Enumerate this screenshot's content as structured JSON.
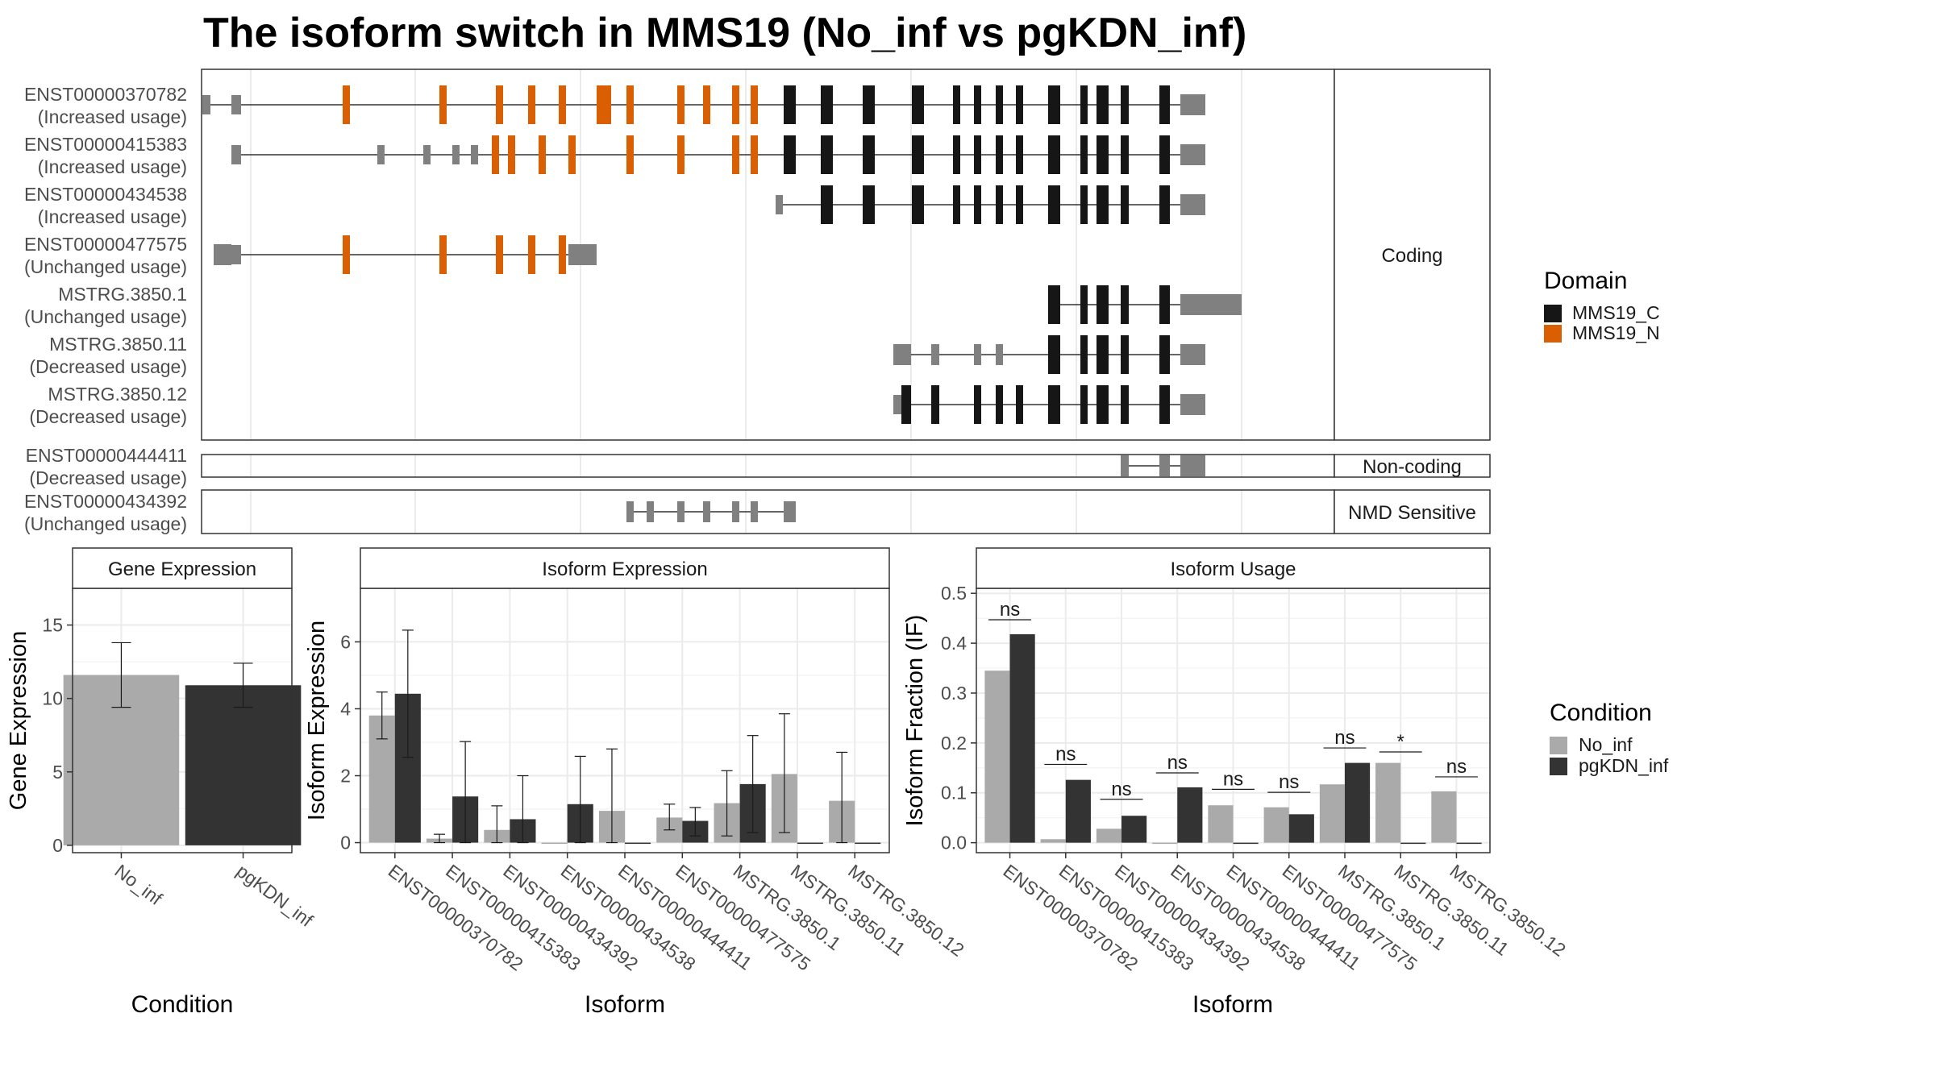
{
  "title": "The isoform switch in MMS19 (No_inf vs pgKDN_inf)",
  "colors": {
    "no_inf": "#AAAAAA",
    "pgkdn_inf": "#333333",
    "mms19_c": "#161616",
    "mms19_n": "#D95F02",
    "exon_plain": "#808080",
    "grid": "#EBEBEB"
  },
  "structure": {
    "facets": [
      "Coding",
      "Non-coding",
      "NMD Sensitive"
    ],
    "domain_legend": {
      "title": "Domain",
      "items": [
        {
          "label": "MMS19_C",
          "color": "#161616"
        },
        {
          "label": "MMS19_N",
          "color": "#D95F02"
        }
      ]
    },
    "isoforms": [
      {
        "id": "ENST00000370782",
        "status": "(Increased usage)",
        "facet": "Coding",
        "exons": [
          [
            1,
            11,
            "t"
          ],
          [
            37,
            49,
            "t"
          ],
          [
            175,
            184,
            "n"
          ],
          [
            295,
            304,
            "n"
          ],
          [
            365,
            374,
            "n"
          ],
          [
            405,
            414,
            "n"
          ],
          [
            443,
            452,
            "n"
          ],
          [
            490,
            508,
            "n"
          ],
          [
            527,
            536,
            "n"
          ],
          [
            590,
            599,
            "n"
          ],
          [
            622,
            631,
            "n"
          ],
          [
            658,
            667,
            "n"
          ],
          [
            681,
            690,
            "n"
          ],
          [
            722,
            737,
            "c"
          ],
          [
            768,
            783,
            "c"
          ],
          [
            820,
            835,
            "c"
          ],
          [
            881,
            896,
            "c"
          ],
          [
            932,
            941,
            "c"
          ],
          [
            958,
            967,
            "c"
          ],
          [
            985,
            994,
            "c"
          ],
          [
            1010,
            1019,
            "c"
          ],
          [
            1050,
            1065,
            "c"
          ],
          [
            1090,
            1099,
            "c"
          ],
          [
            1110,
            1125,
            "c"
          ],
          [
            1140,
            1150,
            "c"
          ],
          [
            1188,
            1201,
            "c"
          ],
          [
            1214,
            1245,
            "u"
          ]
        ]
      },
      {
        "id": "ENST00000415383",
        "status": "(Increased usage)",
        "facet": "Coding",
        "exons": [
          [
            37,
            49,
            "t"
          ],
          [
            218,
            227,
            "t"
          ],
          [
            275,
            284,
            "t"
          ],
          [
            311,
            320,
            "t"
          ],
          [
            334,
            343,
            "t"
          ],
          [
            360,
            369,
            "n"
          ],
          [
            380,
            389,
            "n"
          ],
          [
            418,
            427,
            "n"
          ],
          [
            455,
            464,
            "n"
          ],
          [
            527,
            536,
            "n"
          ],
          [
            590,
            599,
            "n"
          ],
          [
            658,
            667,
            "n"
          ],
          [
            681,
            690,
            "n"
          ],
          [
            722,
            737,
            "c"
          ],
          [
            768,
            783,
            "c"
          ],
          [
            820,
            835,
            "c"
          ],
          [
            881,
            896,
            "c"
          ],
          [
            932,
            941,
            "c"
          ],
          [
            958,
            967,
            "c"
          ],
          [
            985,
            994,
            "c"
          ],
          [
            1010,
            1019,
            "c"
          ],
          [
            1050,
            1065,
            "c"
          ],
          [
            1090,
            1099,
            "c"
          ],
          [
            1110,
            1125,
            "c"
          ],
          [
            1140,
            1150,
            "c"
          ],
          [
            1188,
            1201,
            "c"
          ],
          [
            1214,
            1245,
            "u"
          ]
        ]
      },
      {
        "id": "ENST00000434538",
        "status": "(Increased usage)",
        "facet": "Coding",
        "exons": [
          [
            712,
            721,
            "t"
          ],
          [
            768,
            783,
            "c"
          ],
          [
            820,
            835,
            "c"
          ],
          [
            881,
            896,
            "c"
          ],
          [
            932,
            941,
            "c"
          ],
          [
            958,
            967,
            "c"
          ],
          [
            985,
            994,
            "c"
          ],
          [
            1010,
            1019,
            "c"
          ],
          [
            1050,
            1065,
            "c"
          ],
          [
            1090,
            1099,
            "c"
          ],
          [
            1110,
            1125,
            "c"
          ],
          [
            1140,
            1150,
            "c"
          ],
          [
            1188,
            1201,
            "c"
          ],
          [
            1214,
            1245,
            "u"
          ]
        ]
      },
      {
        "id": "ENST00000477575",
        "status": "(Unchanged usage)",
        "facet": "Coding",
        "exons": [
          [
            15,
            37,
            "u"
          ],
          [
            37,
            49,
            "t"
          ],
          [
            175,
            184,
            "n"
          ],
          [
            295,
            304,
            "n"
          ],
          [
            365,
            374,
            "n"
          ],
          [
            405,
            414,
            "n"
          ],
          [
            443,
            452,
            "n"
          ],
          [
            455,
            490,
            "u"
          ]
        ]
      },
      {
        "id": "MSTRG.3850.1",
        "status": "(Unchanged usage)",
        "facet": "Coding",
        "exons": [
          [
            1050,
            1065,
            "c"
          ],
          [
            1090,
            1099,
            "c"
          ],
          [
            1110,
            1125,
            "c"
          ],
          [
            1140,
            1150,
            "c"
          ],
          [
            1188,
            1201,
            "c"
          ],
          [
            1214,
            1245,
            "u"
          ],
          [
            1245,
            1290,
            "u"
          ]
        ]
      },
      {
        "id": "MSTRG.3850.11",
        "status": "(Decreased usage)",
        "facet": "Coding",
        "exons": [
          [
            858,
            880,
            "u"
          ],
          [
            905,
            915,
            "u"
          ],
          [
            958,
            967,
            "u"
          ],
          [
            985,
            994,
            "u"
          ],
          [
            1050,
            1065,
            "c"
          ],
          [
            1090,
            1099,
            "c"
          ],
          [
            1110,
            1125,
            "c"
          ],
          [
            1140,
            1150,
            "c"
          ],
          [
            1188,
            1201,
            "c"
          ],
          [
            1214,
            1245,
            "u"
          ]
        ]
      },
      {
        "id": "MSTRG.3850.12",
        "status": "(Decreased usage)",
        "facet": "Coding",
        "exons": [
          [
            858,
            868,
            "t"
          ],
          [
            868,
            880,
            "c"
          ],
          [
            905,
            915,
            "c"
          ],
          [
            958,
            967,
            "c"
          ],
          [
            985,
            994,
            "c"
          ],
          [
            1010,
            1019,
            "c"
          ],
          [
            1050,
            1065,
            "c"
          ],
          [
            1090,
            1099,
            "c"
          ],
          [
            1110,
            1125,
            "c"
          ],
          [
            1140,
            1150,
            "c"
          ],
          [
            1188,
            1201,
            "c"
          ],
          [
            1214,
            1245,
            "u"
          ]
        ]
      },
      {
        "id": "ENST00000444411",
        "status": "(Decreased usage)",
        "facet": "Non-coding",
        "exons": [
          [
            1140,
            1150,
            "u"
          ],
          [
            1188,
            1201,
            "u"
          ],
          [
            1214,
            1245,
            "u"
          ]
        ]
      },
      {
        "id": "ENST00000434392",
        "status": "(Unchanged usage)",
        "facet": "NMD Sensitive",
        "exons": [
          [
            527,
            536,
            "u"
          ],
          [
            552,
            561,
            "u"
          ],
          [
            590,
            599,
            "u"
          ],
          [
            622,
            631,
            "u"
          ],
          [
            658,
            667,
            "u"
          ],
          [
            681,
            690,
            "u"
          ],
          [
            722,
            737,
            "u"
          ]
        ]
      }
    ]
  },
  "chart_data": [
    {
      "type": "bar",
      "title": "Gene Expression",
      "xlabel": "Condition",
      "ylabel": "Gene Expression",
      "categories": [
        "No_inf",
        "pgKDN_inf"
      ],
      "values": [
        11.6,
        10.9
      ],
      "error_low": [
        9.4,
        9.4
      ],
      "error_high": [
        13.8,
        12.4
      ],
      "ylim": [
        -0.5,
        17.5
      ],
      "yticks": [
        0,
        5,
        10,
        15
      ]
    },
    {
      "type": "bar",
      "title": "Isoform Expression",
      "xlabel": "Isoform",
      "ylabel": "Isoform Expression",
      "categories": [
        "ENST00000370782",
        "ENST00000415383",
        "ENST00000434392",
        "ENST00000434538",
        "ENST00000444411",
        "ENST00000477575",
        "MSTRG.3850.1",
        "MSTRG.3850.11",
        "MSTRG.3850.12"
      ],
      "series": [
        {
          "name": "No_inf",
          "values": [
            3.8,
            0.12,
            0.38,
            0,
            0.95,
            0.75,
            1.18,
            2.05,
            1.25
          ],
          "error_low": [
            3.1,
            0,
            0,
            0,
            0,
            0.38,
            0.2,
            0.3,
            0
          ],
          "error_high": [
            4.5,
            0.25,
            1.1,
            0,
            2.8,
            1.15,
            2.15,
            3.85,
            2.7
          ]
        },
        {
          "name": "pgKDN_inf",
          "values": [
            4.45,
            1.38,
            0.7,
            1.15,
            0,
            0.65,
            1.75,
            0,
            0
          ],
          "error_low": [
            2.55,
            0,
            0,
            0,
            0,
            0.2,
            0.3,
            0,
            0
          ],
          "error_high": [
            6.35,
            3.02,
            2.0,
            2.58,
            0,
            1.05,
            3.2,
            0,
            0
          ]
        }
      ],
      "ylim": [
        -0.3,
        7.6
      ],
      "yticks": [
        0,
        2,
        4,
        6
      ]
    },
    {
      "type": "bar",
      "title": "Isoform Usage",
      "xlabel": "Isoform",
      "ylabel": "Isoform Fraction (IF)",
      "categories": [
        "ENST00000370782",
        "ENST00000415383",
        "ENST00000434392",
        "ENST00000434538",
        "ENST00000444411",
        "ENST00000477575",
        "MSTRG.3850.1",
        "MSTRG.3850.11",
        "MSTRG.3850.12"
      ],
      "series": [
        {
          "name": "No_inf",
          "values": [
            0.345,
            0.007,
            0.028,
            0,
            0.075,
            0.071,
            0.117,
            0.16,
            0.103
          ]
        },
        {
          "name": "pgKDN_inf",
          "values": [
            0.418,
            0.126,
            0.054,
            0.111,
            0,
            0.057,
            0.16,
            0,
            0
          ]
        }
      ],
      "significance": [
        {
          "label": "ns",
          "y": 0.447
        },
        {
          "label": "ns",
          "y": 0.157
        },
        {
          "label": "ns",
          "y": 0.087
        },
        {
          "label": "ns",
          "y": 0.14
        },
        {
          "label": "ns",
          "y": 0.107
        },
        {
          "label": "ns",
          "y": 0.101
        },
        {
          "label": "ns",
          "y": 0.19
        },
        {
          "label": "*",
          "y": 0.182
        },
        {
          "label": "ns",
          "y": 0.132
        }
      ],
      "ylim": [
        -0.02,
        0.51
      ],
      "yticks": [
        0.0,
        0.1,
        0.2,
        0.3,
        0.4,
        0.5
      ]
    }
  ],
  "condition_legend": {
    "title": "Condition",
    "items": [
      {
        "label": "No_inf",
        "color": "#AAAAAA"
      },
      {
        "label": "pgKDN_inf",
        "color": "#333333"
      }
    ]
  }
}
